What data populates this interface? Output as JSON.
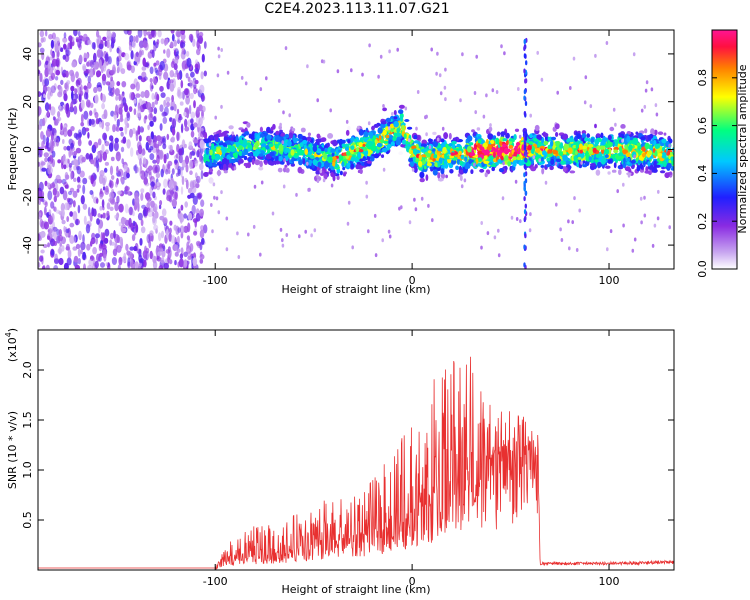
{
  "title": "C2E4.2023.113.11.07.G21",
  "chart_data": [
    {
      "type": "heatmap",
      "xlabel": "Height of straight line (km)",
      "ylabel": "Frequency (Hz)",
      "xlim": [
        -190,
        133
      ],
      "ylim": [
        -50,
        50
      ],
      "xticks": [
        -100,
        0,
        100
      ],
      "yticks": [
        -40,
        -20,
        0,
        20,
        40
      ],
      "colorbar": {
        "label": "Normalized spectral amplitude",
        "range": [
          0.0,
          1.0
        ],
        "ticks": [
          "0.0",
          "0.2",
          "0.4",
          "0.6",
          "0.8"
        ],
        "colormap": [
          "#ffffff",
          "#c8a6f0",
          "#8a2be2",
          "#2020ff",
          "#00c8ff",
          "#00ff80",
          "#ffff00",
          "#ff8000",
          "#ff1040",
          "#ff1493"
        ]
      },
      "regions": [
        {
          "name": "noise",
          "x": [
            -190,
            -105
          ],
          "freq_range": [
            -50,
            50
          ],
          "amplitude": [
            0.05,
            0.25
          ]
        },
        {
          "name": "signal",
          "x": [
            -105,
            133
          ],
          "center_freq": 0,
          "width_hz": 8,
          "amplitude": [
            0.2,
            1.0
          ]
        },
        {
          "name": "spike",
          "x": [
            57,
            58
          ],
          "freq_range": [
            -50,
            50
          ],
          "amplitude": [
            0.2,
            0.4
          ]
        }
      ],
      "signal_center_trend": {
        "x": [
          -105,
          -80,
          -60,
          -40,
          -20,
          -5,
          0,
          5,
          20,
          40,
          60,
          80,
          100,
          133
        ],
        "freq": [
          -2,
          2,
          0,
          -4,
          2,
          10,
          0,
          -4,
          -2,
          -1,
          0,
          -1,
          0,
          -2
        ]
      }
    },
    {
      "type": "line",
      "xlabel": "Height of straight line (km)",
      "ylabel": "SNR (10 * v/v)",
      "y_multiplier": "(x10^4)",
      "y_multiplier_base": "(x10",
      "y_multiplier_exp": "4",
      "y_multiplier_close": ")",
      "xlim": [
        -190,
        133
      ],
      "ylim": [
        0,
        2.4
      ],
      "xticks": [
        -100,
        0,
        100
      ],
      "yticks": [
        "0.5",
        "1.0",
        "1.5",
        "2.0"
      ],
      "color": "#e83030",
      "envelope": {
        "x": [
          -190,
          -100,
          -95,
          -80,
          -60,
          -40,
          -20,
          0,
          10,
          20,
          30,
          40,
          50,
          60,
          64,
          65,
          100,
          133
        ],
        "base": [
          0.02,
          0.02,
          0.1,
          0.15,
          0.2,
          0.3,
          0.4,
          0.6,
          0.75,
          0.9,
          1.1,
          1.15,
          1.15,
          1.15,
          1.15,
          0.05,
          0.05,
          0.06
        ],
        "peak": [
          0.02,
          0.02,
          0.25,
          0.45,
          0.55,
          0.75,
          0.9,
          1.5,
          1.9,
          2.1,
          2.3,
          1.7,
          1.6,
          1.5,
          1.4,
          0.1,
          0.1,
          0.12
        ]
      }
    }
  ]
}
